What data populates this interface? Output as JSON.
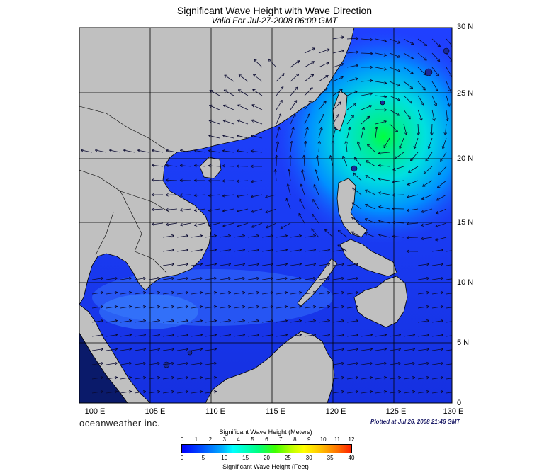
{
  "header": {
    "title": "Significant Wave Height with Wave Direction",
    "subtitle": "Valid For Jul-27-2008 06:00 GMT"
  },
  "map": {
    "lon_labels": [
      "100 E",
      "105 E",
      "110 E",
      "115 E",
      "120 E",
      "125 E",
      "130 E"
    ],
    "lat_labels": [
      "30 N",
      "25 N",
      "20 N",
      "15 N",
      "10 N",
      "5 N",
      "0"
    ],
    "land_color": "#c0c0c0",
    "sea_base_color": "#1e3cff",
    "storm_peak_color": "#00ff60"
  },
  "footer": {
    "brand": "oceanweather inc.",
    "plotted": "Plotted at Jul 26, 2008 21:46 GMT"
  },
  "legend": {
    "meters_title": "Significant Wave Height (Meters)",
    "feet_title": "Significant Wave Height (Feet)",
    "meters_ticks": [
      "0",
      "1",
      "2",
      "3",
      "4",
      "5",
      "6",
      "7",
      "8",
      "9",
      "10",
      "11",
      "12"
    ],
    "feet_ticks": [
      "0",
      "5",
      "10",
      "15",
      "20",
      "25",
      "30",
      "35",
      "40"
    ]
  }
}
